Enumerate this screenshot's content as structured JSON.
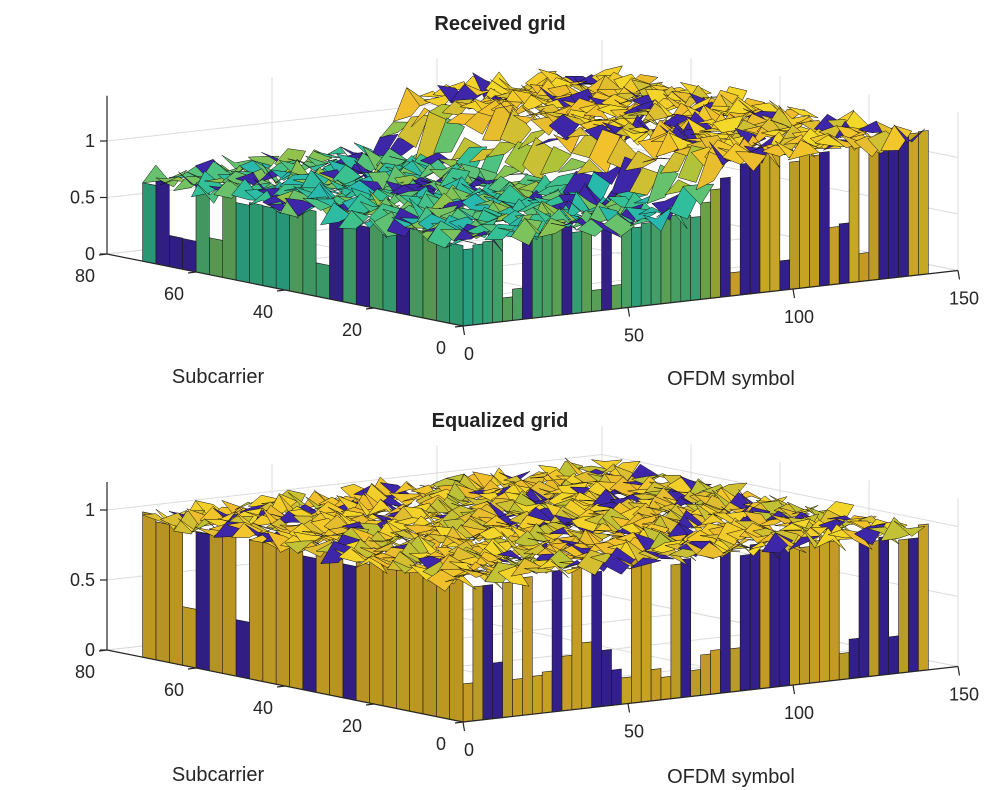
{
  "figure": {
    "colormap": [
      "#3e26a8",
      "#2e6ff0",
      "#16aad2",
      "#35c194",
      "#a9c43a",
      "#f0bc2c",
      "#f5e228"
    ]
  },
  "chart_data": [
    {
      "type": "surface",
      "title": "Received grid",
      "xlabel": "OFDM symbol",
      "ylabel": "Subcarrier",
      "zlabel": "",
      "xlim": [
        0,
        150
      ],
      "ylim": [
        0,
        80
      ],
      "zlim": [
        0,
        1.4
      ],
      "xticks": [
        0,
        50,
        100,
        150
      ],
      "yticks": [
        0,
        20,
        40,
        60,
        80
      ],
      "zticks": [
        0,
        0.5,
        1
      ],
      "xtick_labels": [
        "0",
        "50",
        "100",
        "150"
      ],
      "ytick_labels": [
        "0",
        "20",
        "40",
        "60",
        "80"
      ],
      "ztick_labels": [
        "0",
        "0.5",
        "1"
      ],
      "grid": true,
      "surface_profile": {
        "description": "magnitude vs OFDM symbol; low ~0.75 for symbols 0-70, rising to ~1.2 for symbols above ~75",
        "symbol_breakpoints": [
          0,
          70,
          80,
          140
        ],
        "level_at_breakpoints": [
          0.75,
          0.75,
          1.2,
          1.2
        ],
        "subcarrier_variation": 0.15
      }
    },
    {
      "type": "surface",
      "title": "Equalized grid",
      "xlabel": "OFDM symbol",
      "ylabel": "Subcarrier",
      "zlabel": "",
      "xlim": [
        0,
        150
      ],
      "ylim": [
        0,
        80
      ],
      "zlim": [
        0,
        1.2
      ],
      "xticks": [
        0,
        50,
        100,
        150
      ],
      "yticks": [
        0,
        20,
        40,
        60,
        80
      ],
      "zticks": [
        0,
        0.5,
        1
      ],
      "xtick_labels": [
        "0",
        "50",
        "100",
        "150"
      ],
      "ytick_labels": [
        "0",
        "20",
        "40",
        "60",
        "80"
      ],
      "ztick_labels": [
        "0",
        "0.5",
        "1"
      ],
      "grid": true,
      "surface_profile": {
        "description": "magnitude roughly flat around 1 across all symbols and subcarriers",
        "symbol_breakpoints": [
          0,
          140
        ],
        "level_at_breakpoints": [
          1.0,
          1.0
        ],
        "subcarrier_variation": 0.1
      }
    }
  ]
}
